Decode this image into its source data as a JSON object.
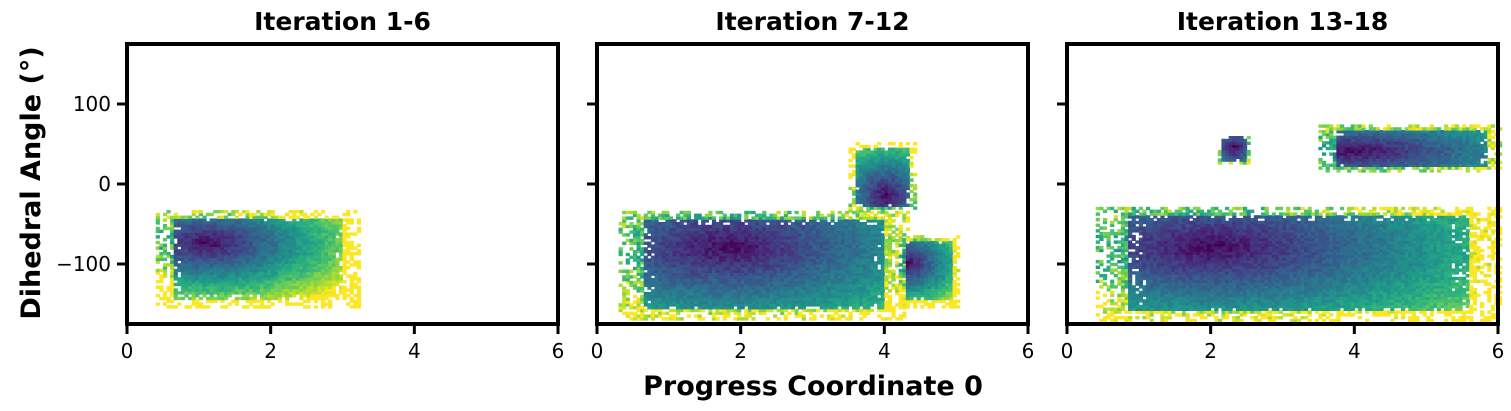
{
  "figure": {
    "xlabel": "Progress Coordinate 0",
    "ylabel": "Dihedral Angle (°)"
  },
  "chart_data": [
    {
      "type": "heatmap",
      "title": "Iteration 1-6",
      "xlim": [
        0,
        6
      ],
      "ylim": [
        -175,
        175
      ],
      "xticks": [
        "0",
        "2",
        "4",
        "6"
      ],
      "yticks": [
        "100",
        "0",
        "−100"
      ],
      "colormap": "viridis",
      "regions": [
        {
          "x": [
            0.4,
            3.2
          ],
          "y": [
            -155,
            -35
          ],
          "center": [
            1.1,
            -75
          ],
          "spread": [
            0.7,
            25
          ]
        }
      ]
    },
    {
      "type": "heatmap",
      "title": "Iteration 7-12",
      "xlim": [
        0,
        6
      ],
      "ylim": [
        -175,
        175
      ],
      "xticks": [
        "0",
        "2",
        "4",
        "6"
      ],
      "yticks": [
        "100",
        "0",
        "−100"
      ],
      "colormap": "viridis",
      "regions": [
        {
          "x": [
            0.3,
            4.3
          ],
          "y": [
            -170,
            -35
          ],
          "center": [
            1.8,
            -80
          ],
          "spread": [
            1.4,
            45
          ]
        },
        {
          "x": [
            4.2,
            5.0
          ],
          "y": [
            -155,
            -65
          ],
          "center": [
            4.3,
            -100
          ],
          "spread": [
            0.3,
            20
          ]
        },
        {
          "x": [
            3.5,
            4.4
          ],
          "y": [
            -35,
            50
          ],
          "center": [
            4.0,
            -15
          ],
          "spread": [
            0.3,
            25
          ]
        }
      ]
    },
    {
      "type": "heatmap",
      "title": "Iteration 13-18",
      "xlim": [
        0,
        6
      ],
      "ylim": [
        -175,
        175
      ],
      "xticks": [
        "0",
        "2",
        "4",
        "6"
      ],
      "yticks": [
        "100",
        "0",
        "−100"
      ],
      "colormap": "viridis",
      "regions": [
        {
          "x": [
            0.4,
            6.0
          ],
          "y": [
            -172,
            -30
          ],
          "center": [
            2.0,
            -80
          ],
          "spread": [
            1.7,
            45
          ]
        },
        {
          "x": [
            3.5,
            6.0
          ],
          "y": [
            15,
            72
          ],
          "center": [
            4.0,
            40
          ],
          "spread": [
            1.2,
            20
          ]
        },
        {
          "x": [
            2.1,
            2.5
          ],
          "y": [
            25,
            60
          ],
          "center": [
            2.3,
            45
          ],
          "spread": [
            0.2,
            15
          ]
        }
      ]
    }
  ]
}
